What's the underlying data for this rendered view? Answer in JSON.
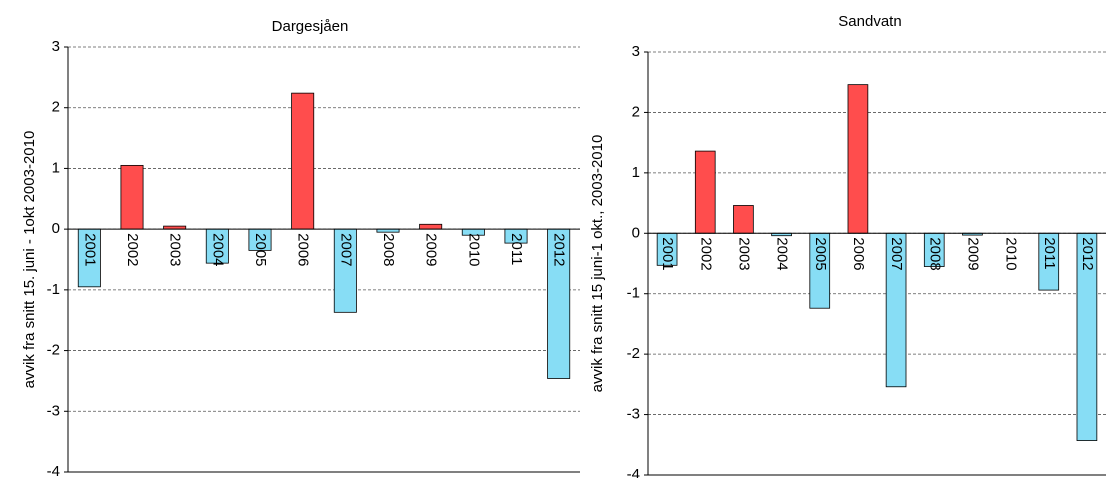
{
  "chart_data": [
    {
      "type": "bar",
      "title": "Dargesjåen",
      "y_label": "avvik fra snitt 15. juni - 1okt  2003-2010",
      "categories": [
        "2001",
        "2002",
        "2003",
        "2004",
        "2005",
        "2006",
        "2007",
        "2008",
        "2009",
        "2010",
        "2011",
        "2012"
      ],
      "values": [
        -0.95,
        1.05,
        0.05,
        -0.56,
        -0.35,
        2.24,
        -1.37,
        -0.05,
        0.08,
        -0.1,
        -0.23,
        -2.46
      ],
      "positive_color": "#ff4d4d",
      "negative_color": "#87ddf5",
      "ylim": [
        -4,
        3
      ],
      "yticks": [
        -4,
        -3,
        -2,
        -1,
        0,
        1,
        2,
        3
      ],
      "grid": true
    },
    {
      "type": "bar",
      "title": "Sandvatn",
      "y_label": "avvik fra snitt  15 juni-1 okt., 2003-2010",
      "categories": [
        "2001",
        "2002",
        "2003",
        "2004",
        "2005",
        "2006",
        "2007",
        "2008",
        "2009",
        "2010",
        "2011",
        "2012"
      ],
      "values": [
        -0.53,
        1.36,
        0.46,
        -0.04,
        -1.24,
        2.46,
        -2.54,
        -0.55,
        -0.03,
        0,
        -0.94,
        -3.43
      ],
      "positive_color": "#ff4d4d",
      "negative_color": "#87ddf5",
      "ylim": [
        -4,
        3
      ],
      "yticks": [
        -4,
        -3,
        -2,
        -1,
        0,
        1,
        2,
        3
      ],
      "grid": true
    }
  ]
}
